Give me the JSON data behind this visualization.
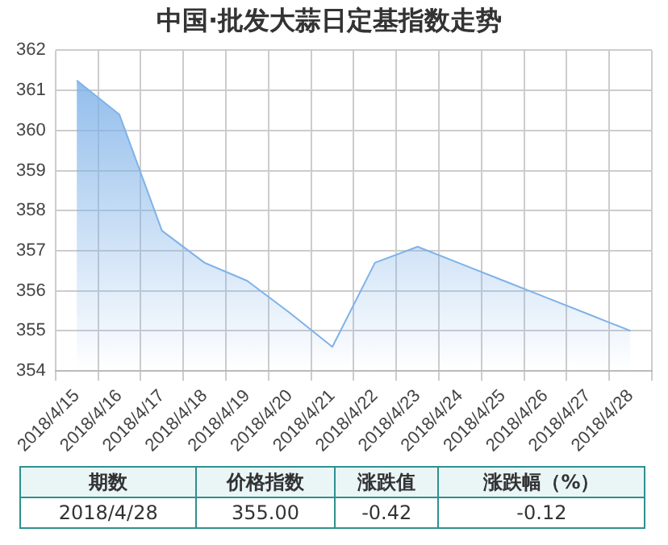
{
  "chart_data": {
    "type": "area",
    "title": "中国·批发大蒜日定基指数走势",
    "categories": [
      "2018/4/15",
      "2018/4/16",
      "2018/4/17",
      "2018/4/18",
      "2018/4/19",
      "2018/4/20",
      "2018/4/21",
      "2018/4/22",
      "2018/4/23",
      "2018/4/24",
      "2018/4/25",
      "2018/4/26",
      "2018/4/27",
      "2018/4/28"
    ],
    "series": [
      {
        "color": "#7fb2e8",
        "values": [
          361.25,
          360.4,
          357.5,
          356.7,
          356.25,
          355.45,
          354.6,
          356.7,
          357.1,
          356.68,
          356.26,
          355.84,
          355.42,
          355.0
        ]
      }
    ],
    "ylim": [
      354,
      362
    ],
    "yticks": [
      354,
      355,
      356,
      357,
      358,
      359,
      360,
      361,
      362
    ],
    "grid": true,
    "legend": false,
    "annotations": [
      "期数",
      "价格指数",
      "涨跌值",
      "涨跌幅（%）",
      "2018/4/28",
      "355.00",
      "-0.42",
      "-0.12"
    ]
  }
}
